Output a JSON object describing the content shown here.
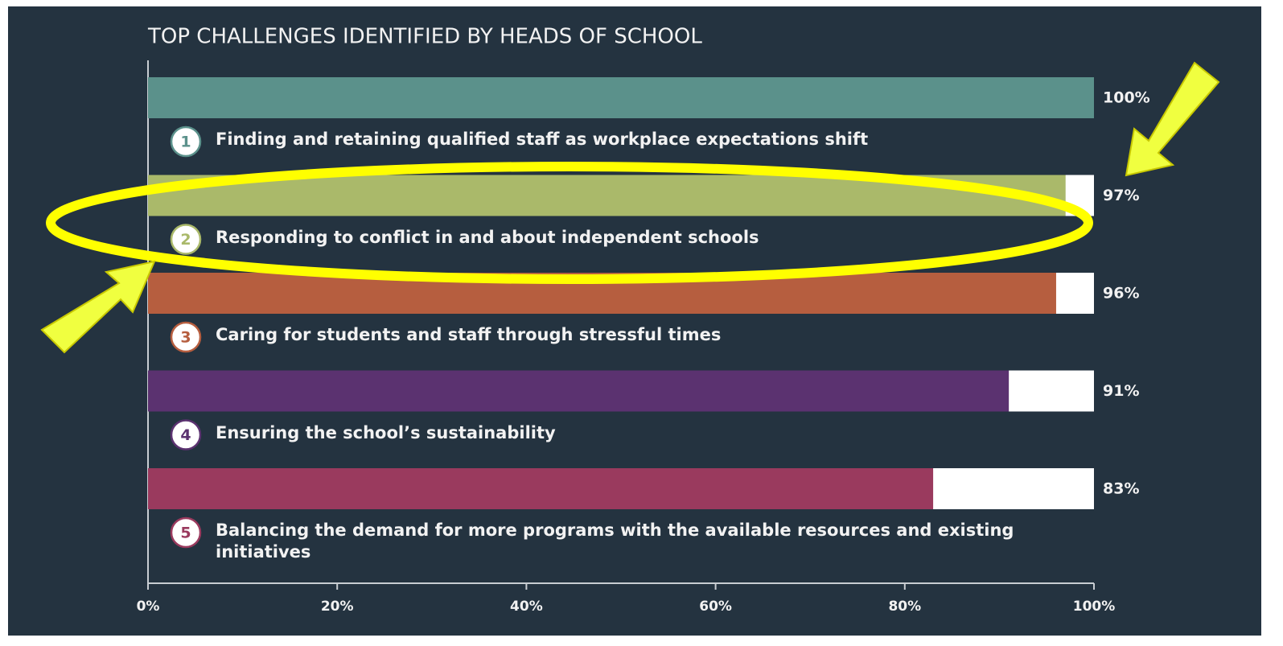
{
  "chart_data": {
    "type": "hbar",
    "title": "TOP CHALLENGES IDENTIFIED BY HEADS OF SCHOOL",
    "ranks": [
      "1",
      "2",
      "3",
      "4",
      "5"
    ],
    "categories": [
      "Finding and retaining qualified staff as workplace expectations shift",
      "Responding to conflict in and about independent schools",
      "Caring for students and staff through stressful times",
      "Ensuring the school’s sustainability",
      "Balancing the demand for more programs with the available resources and existing initiatives"
    ],
    "values": [
      100,
      97,
      96,
      91,
      83
    ],
    "value_labels": [
      "100%",
      "97%",
      "96%",
      "91%",
      "83%"
    ],
    "colors": [
      "#5b918b",
      "#aab96a",
      "#b65e3f",
      "#5b3270",
      "#9a3a5e"
    ],
    "track_color": "#ffffff",
    "xlim": [
      0,
      100
    ],
    "xticks": [
      {
        "value": 0,
        "label": "0%"
      },
      {
        "value": 20,
        "label": "20%"
      },
      {
        "value": 40,
        "label": "40%"
      },
      {
        "value": 60,
        "label": "60%"
      },
      {
        "value": 80,
        "label": "80%"
      },
      {
        "value": 100,
        "label": "100%"
      }
    ]
  }
}
